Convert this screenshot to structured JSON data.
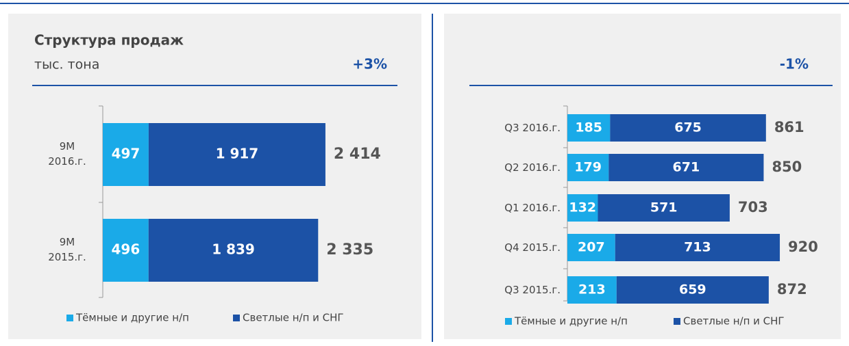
{
  "chart_data": [
    {
      "type": "bar",
      "title": "Структура продаж",
      "subtitle": "тыс. тона",
      "change_label": "+3%",
      "categories": [
        "9M 2016.г.",
        "9M 2015.г."
      ],
      "series": [
        {
          "name": "Тёмные и другие н/п",
          "color": "#1aaae8",
          "values": [
            497,
            496
          ],
          "value_labels": [
            "497",
            "496"
          ]
        },
        {
          "name": "Светлые н/п и СНГ",
          "color": "#1c52a6",
          "values": [
            1917,
            1839
          ],
          "value_labels": [
            "1 917",
            "1 839"
          ]
        }
      ],
      "total_labels": [
        "2 414",
        "2 335"
      ]
    },
    {
      "type": "bar",
      "change_label": "-1%",
      "categories": [
        "Q3 2016.г.",
        "Q2 2016.г.",
        "Q1 2016.г.",
        "Q4 2015.г.",
        "Q3 2015.г."
      ],
      "series": [
        {
          "name": "Тёмные и другие н/п",
          "color": "#1aaae8",
          "values": [
            185,
            179,
            132,
            207,
            213
          ],
          "value_labels": [
            "185",
            "179",
            "132",
            "207",
            "213"
          ]
        },
        {
          "name": "Светлые н/п и СНГ",
          "color": "#1c52a6",
          "values": [
            675,
            671,
            571,
            713,
            659
          ],
          "value_labels": [
            "675",
            "671",
            "571",
            "713",
            "659"
          ]
        }
      ],
      "total_labels": [
        "861",
        "850",
        "703",
        "920",
        "872"
      ]
    }
  ]
}
